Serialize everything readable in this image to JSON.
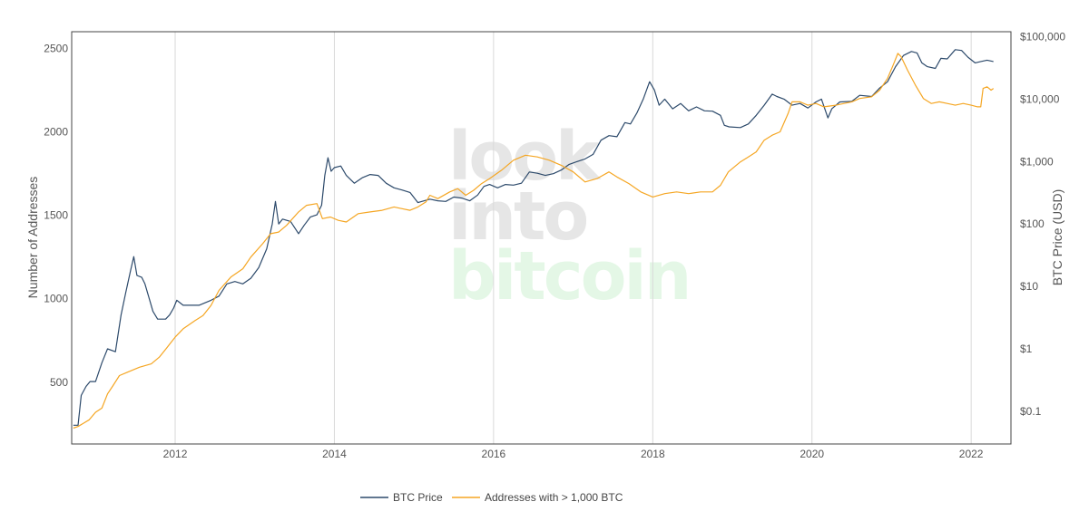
{
  "chart_data": {
    "type": "line",
    "x_axis": {
      "ticks": [
        "2012",
        "2014",
        "2016",
        "2018",
        "2020",
        "2022"
      ],
      "range": [
        2010.7,
        2022.5
      ],
      "grid": true
    },
    "y_left": {
      "label": "Number of Addresses",
      "ticks": [
        "500",
        "1000",
        "1500",
        "2000",
        "2500"
      ],
      "range": [
        130,
        2600
      ]
    },
    "y_right": {
      "label": "BTC Price (USD)",
      "scale": "log",
      "ticks": [
        "$0.1",
        "$1",
        "$10",
        "$100",
        "$1,000",
        "$10,000",
        "$100,000"
      ],
      "range": [
        0.03,
        120000
      ]
    },
    "legend_position": "bottom-center",
    "watermark": [
      "look",
      "into",
      "bitcoin"
    ],
    "series": [
      {
        "name": "BTC Price",
        "axis": "right",
        "color": "#2d4a6b",
        "points": [
          [
            2010.72,
            0.06
          ],
          [
            2010.78,
            0.06
          ],
          [
            2010.82,
            0.18
          ],
          [
            2010.88,
            0.25
          ],
          [
            2010.93,
            0.3
          ],
          [
            2011.0,
            0.3
          ],
          [
            2011.08,
            0.6
          ],
          [
            2011.15,
            1.0
          ],
          [
            2011.25,
            0.9
          ],
          [
            2011.32,
            3.5
          ],
          [
            2011.38,
            8.0
          ],
          [
            2011.44,
            18.0
          ],
          [
            2011.48,
            30.0
          ],
          [
            2011.52,
            15.0
          ],
          [
            2011.58,
            14.0
          ],
          [
            2011.62,
            11.0
          ],
          [
            2011.68,
            6.0
          ],
          [
            2011.72,
            4.0
          ],
          [
            2011.78,
            3.0
          ],
          [
            2011.82,
            3.0
          ],
          [
            2011.88,
            3.0
          ],
          [
            2011.93,
            3.5
          ],
          [
            2011.98,
            4.5
          ],
          [
            2012.02,
            6.0
          ],
          [
            2012.1,
            5.0
          ],
          [
            2012.2,
            5.0
          ],
          [
            2012.3,
            5.0
          ],
          [
            2012.45,
            6.0
          ],
          [
            2012.55,
            7.0
          ],
          [
            2012.65,
            11.0
          ],
          [
            2012.75,
            12.0
          ],
          [
            2012.85,
            11.0
          ],
          [
            2012.95,
            13.5
          ],
          [
            2013.05,
            20.0
          ],
          [
            2013.15,
            40.0
          ],
          [
            2013.22,
            100.0
          ],
          [
            2013.26,
            230.0
          ],
          [
            2013.3,
            100.0
          ],
          [
            2013.35,
            120.0
          ],
          [
            2013.45,
            110.0
          ],
          [
            2013.55,
            70.0
          ],
          [
            2013.62,
            95.0
          ],
          [
            2013.7,
            130.0
          ],
          [
            2013.78,
            140.0
          ],
          [
            2013.84,
            200.0
          ],
          [
            2013.88,
            600.0
          ],
          [
            2013.92,
            1150.0
          ],
          [
            2013.96,
            700.0
          ],
          [
            2014.0,
            800.0
          ],
          [
            2014.08,
            850.0
          ],
          [
            2014.15,
            600.0
          ],
          [
            2014.25,
            450.0
          ],
          [
            2014.35,
            550.0
          ],
          [
            2014.45,
            620.0
          ],
          [
            2014.55,
            600.0
          ],
          [
            2014.65,
            450.0
          ],
          [
            2014.75,
            380.0
          ],
          [
            2014.85,
            350.0
          ],
          [
            2014.95,
            320.0
          ],
          [
            2015.05,
            220.0
          ],
          [
            2015.1,
            230.0
          ],
          [
            2015.2,
            250.0
          ],
          [
            2015.3,
            235.0
          ],
          [
            2015.4,
            230.0
          ],
          [
            2015.5,
            270.0
          ],
          [
            2015.6,
            260.0
          ],
          [
            2015.7,
            235.0
          ],
          [
            2015.8,
            290.0
          ],
          [
            2015.88,
            400.0
          ],
          [
            2015.95,
            430.0
          ],
          [
            2016.05,
            380.0
          ],
          [
            2016.15,
            430.0
          ],
          [
            2016.25,
            420.0
          ],
          [
            2016.35,
            450.0
          ],
          [
            2016.45,
            680.0
          ],
          [
            2016.55,
            650.0
          ],
          [
            2016.65,
            600.0
          ],
          [
            2016.75,
            640.0
          ],
          [
            2016.85,
            730.0
          ],
          [
            2016.95,
            900.0
          ],
          [
            2017.05,
            1000.0
          ],
          [
            2017.15,
            1100.0
          ],
          [
            2017.25,
            1300.0
          ],
          [
            2017.35,
            2200.0
          ],
          [
            2017.45,
            2600.0
          ],
          [
            2017.55,
            2500.0
          ],
          [
            2017.65,
            4200.0
          ],
          [
            2017.72,
            4000.0
          ],
          [
            2017.8,
            6000.0
          ],
          [
            2017.88,
            10000.0
          ],
          [
            2017.96,
            19000.0
          ],
          [
            2018.02,
            14000.0
          ],
          [
            2018.08,
            8000.0
          ],
          [
            2018.15,
            10000.0
          ],
          [
            2018.25,
            7000.0
          ],
          [
            2018.35,
            8500.0
          ],
          [
            2018.45,
            6500.0
          ],
          [
            2018.55,
            7500.0
          ],
          [
            2018.65,
            6500.0
          ],
          [
            2018.75,
            6400.0
          ],
          [
            2018.85,
            5500.0
          ],
          [
            2018.9,
            3800.0
          ],
          [
            2018.96,
            3600.0
          ],
          [
            2019.1,
            3500.0
          ],
          [
            2019.2,
            4000.0
          ],
          [
            2019.3,
            5500.0
          ],
          [
            2019.4,
            8000.0
          ],
          [
            2019.5,
            12000.0
          ],
          [
            2019.56,
            11000.0
          ],
          [
            2019.65,
            10000.0
          ],
          [
            2019.75,
            8000.0
          ],
          [
            2019.85,
            8500.0
          ],
          [
            2019.95,
            7200.0
          ],
          [
            2020.05,
            9000.0
          ],
          [
            2020.12,
            10000.0
          ],
          [
            2020.2,
            5000.0
          ],
          [
            2020.25,
            7000.0
          ],
          [
            2020.35,
            9000.0
          ],
          [
            2020.5,
            9200.0
          ],
          [
            2020.6,
            11500.0
          ],
          [
            2020.75,
            11000.0
          ],
          [
            2020.85,
            15000.0
          ],
          [
            2020.95,
            19000.0
          ],
          [
            2021.05,
            33000.0
          ],
          [
            2021.15,
            50000.0
          ],
          [
            2021.25,
            58000.0
          ],
          [
            2021.32,
            55000.0
          ],
          [
            2021.38,
            38000.0
          ],
          [
            2021.45,
            33000.0
          ],
          [
            2021.55,
            31000.0
          ],
          [
            2021.62,
            45000.0
          ],
          [
            2021.7,
            44000.0
          ],
          [
            2021.8,
            62000.0
          ],
          [
            2021.88,
            60000.0
          ],
          [
            2021.96,
            47000.0
          ],
          [
            2022.05,
            38000.0
          ],
          [
            2022.12,
            40000.0
          ],
          [
            2022.2,
            42000.0
          ],
          [
            2022.28,
            40000.0
          ]
        ]
      },
      {
        "name": "Addresses with > 1,000 BTC",
        "axis": "left",
        "color": "#f5a623",
        "points": [
          [
            2010.72,
            225
          ],
          [
            2010.78,
            235
          ],
          [
            2010.85,
            255
          ],
          [
            2010.92,
            275
          ],
          [
            2011.0,
            320
          ],
          [
            2011.08,
            345
          ],
          [
            2011.15,
            430
          ],
          [
            2011.22,
            480
          ],
          [
            2011.3,
            540
          ],
          [
            2011.4,
            560
          ],
          [
            2011.55,
            590
          ],
          [
            2011.7,
            610
          ],
          [
            2011.8,
            650
          ],
          [
            2011.9,
            710
          ],
          [
            2012.0,
            770
          ],
          [
            2012.1,
            820
          ],
          [
            2012.25,
            870
          ],
          [
            2012.35,
            900
          ],
          [
            2012.45,
            960
          ],
          [
            2012.55,
            1050
          ],
          [
            2012.7,
            1130
          ],
          [
            2012.85,
            1180
          ],
          [
            2012.95,
            1250
          ],
          [
            2013.1,
            1330
          ],
          [
            2013.2,
            1390
          ],
          [
            2013.3,
            1400
          ],
          [
            2013.4,
            1440
          ],
          [
            2013.55,
            1520
          ],
          [
            2013.65,
            1560
          ],
          [
            2013.78,
            1570
          ],
          [
            2013.85,
            1480
          ],
          [
            2013.95,
            1490
          ],
          [
            2014.05,
            1470
          ],
          [
            2014.15,
            1460
          ],
          [
            2014.3,
            1510
          ],
          [
            2014.45,
            1520
          ],
          [
            2014.6,
            1530
          ],
          [
            2014.75,
            1550
          ],
          [
            2014.85,
            1540
          ],
          [
            2014.95,
            1530
          ],
          [
            2015.05,
            1550
          ],
          [
            2015.15,
            1580
          ],
          [
            2015.2,
            1620
          ],
          [
            2015.3,
            1600
          ],
          [
            2015.45,
            1640
          ],
          [
            2015.55,
            1660
          ],
          [
            2015.65,
            1620
          ],
          [
            2015.75,
            1650
          ],
          [
            2015.85,
            1690
          ],
          [
            2015.95,
            1720
          ],
          [
            2016.1,
            1770
          ],
          [
            2016.25,
            1830
          ],
          [
            2016.4,
            1860
          ],
          [
            2016.55,
            1850
          ],
          [
            2016.7,
            1830
          ],
          [
            2016.85,
            1800
          ],
          [
            2017.0,
            1760
          ],
          [
            2017.15,
            1700
          ],
          [
            2017.3,
            1720
          ],
          [
            2017.45,
            1760
          ],
          [
            2017.55,
            1730
          ],
          [
            2017.7,
            1690
          ],
          [
            2017.85,
            1640
          ],
          [
            2018.0,
            1610
          ],
          [
            2018.15,
            1630
          ],
          [
            2018.3,
            1640
          ],
          [
            2018.45,
            1630
          ],
          [
            2018.6,
            1640
          ],
          [
            2018.75,
            1640
          ],
          [
            2018.85,
            1680
          ],
          [
            2018.95,
            1760
          ],
          [
            2019.1,
            1820
          ],
          [
            2019.2,
            1850
          ],
          [
            2019.3,
            1880
          ],
          [
            2019.4,
            1950
          ],
          [
            2019.5,
            1980
          ],
          [
            2019.6,
            2000
          ],
          [
            2019.7,
            2110
          ],
          [
            2019.75,
            2180
          ],
          [
            2019.85,
            2180
          ],
          [
            2019.95,
            2160
          ],
          [
            2020.05,
            2170
          ],
          [
            2020.15,
            2150
          ],
          [
            2020.3,
            2160
          ],
          [
            2020.5,
            2180
          ],
          [
            2020.6,
            2200
          ],
          [
            2020.75,
            2210
          ],
          [
            2020.85,
            2250
          ],
          [
            2020.95,
            2320
          ],
          [
            2021.02,
            2400
          ],
          [
            2021.08,
            2470
          ],
          [
            2021.12,
            2450
          ],
          [
            2021.2,
            2370
          ],
          [
            2021.3,
            2280
          ],
          [
            2021.4,
            2200
          ],
          [
            2021.5,
            2170
          ],
          [
            2021.6,
            2180
          ],
          [
            2021.7,
            2170
          ],
          [
            2021.8,
            2160
          ],
          [
            2021.9,
            2170
          ],
          [
            2022.0,
            2160
          ],
          [
            2022.08,
            2150
          ],
          [
            2022.12,
            2150
          ],
          [
            2022.15,
            2260
          ],
          [
            2022.2,
            2270
          ],
          [
            2022.25,
            2250
          ],
          [
            2022.28,
            2260
          ]
        ]
      }
    ]
  }
}
